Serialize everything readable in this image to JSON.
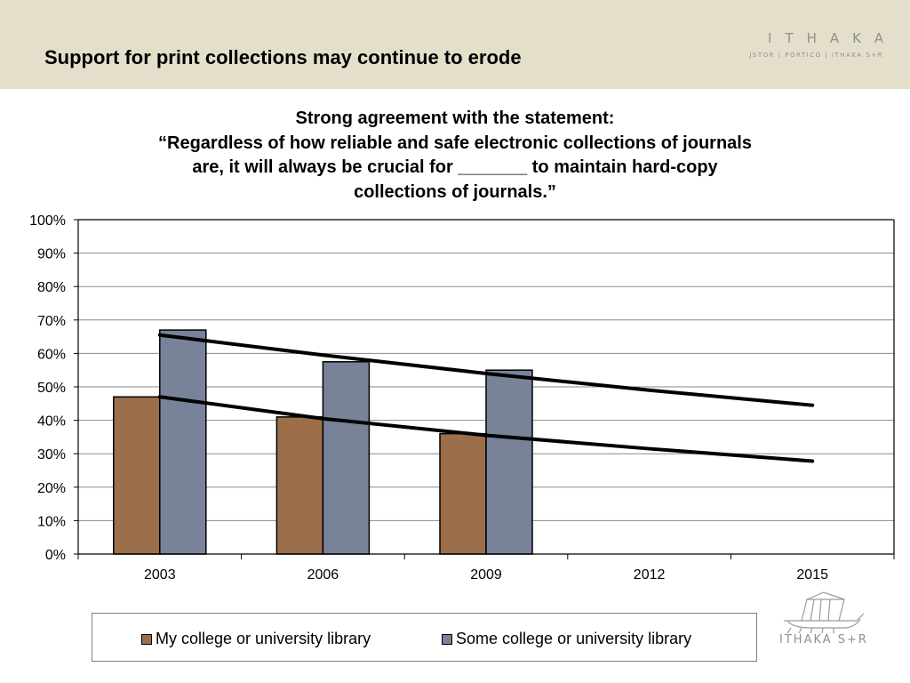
{
  "slide": {
    "title": "Support for print collections may continue to erode"
  },
  "brand": {
    "name": "ITHAKA",
    "subtitle": "JSTOR | PORTICO | ITHAKA S+R",
    "logo_text": "ITHAKA S+R",
    "logo_icon": "ship-icon"
  },
  "chart_data": {
    "type": "bar",
    "title": [
      "Strong agreement with the statement:",
      "“Regardless of how reliable and safe electronic collections of journals",
      "are, it will always be crucial for _______ to maintain hard-copy",
      "collections of journals.”"
    ],
    "categories": [
      "2003",
      "2006",
      "2009",
      "2012",
      "2015"
    ],
    "series": [
      {
        "name": "My college or university library",
        "values": [
          0.47,
          0.41,
          0.36,
          null,
          null
        ],
        "color": "#9c6f4a"
      },
      {
        "name": "Some college or university library",
        "values": [
          0.67,
          0.575,
          0.55,
          null,
          null
        ],
        "color": "#788299"
      }
    ],
    "trendlines": [
      {
        "values": [
          0.655,
          0.595,
          0.54,
          0.49,
          0.445
        ]
      },
      {
        "values": [
          0.47,
          0.405,
          0.355,
          0.315,
          0.278
        ]
      }
    ],
    "yticks": [
      "0%",
      "10%",
      "20%",
      "30%",
      "40%",
      "50%",
      "60%",
      "70%",
      "80%",
      "90%",
      "100%"
    ],
    "ylim": [
      0,
      1
    ],
    "grid": true,
    "legend_position": "bottom"
  }
}
